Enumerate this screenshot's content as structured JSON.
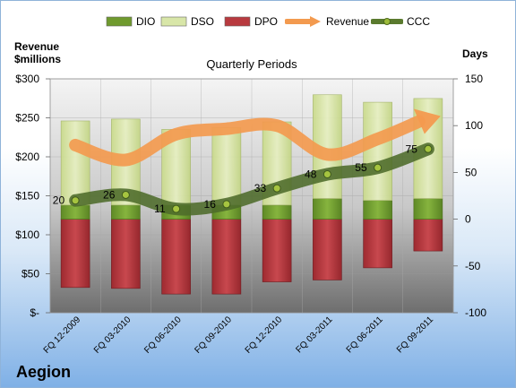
{
  "legend": [
    {
      "name": "DIO",
      "color": "#6f9a2e",
      "kind": "box"
    },
    {
      "name": "DSO",
      "color": "#d8e6a8",
      "kind": "box"
    },
    {
      "name": "DPO",
      "color": "#b83a3f",
      "kind": "box"
    },
    {
      "name": "Revenue",
      "color": "#f39a4f",
      "kind": "arrow"
    },
    {
      "name": "CCC",
      "color": "#5a7a2e",
      "kind": "line"
    }
  ],
  "left_axis_title": "Revenue\n$millions",
  "right_axis_title": "Days",
  "company": "Aegion",
  "chart_data": {
    "type": "bar",
    "title": "Quarterly Periods",
    "categories": [
      "FQ 12-2009",
      "FQ 03-2010",
      "FQ 06-2010",
      "FQ 09-2010",
      "FQ 12-2010",
      "FQ 03-2011",
      "FQ 06-2011",
      "FQ 09-2011"
    ],
    "y_left": {
      "label": "Revenue $millions",
      "range": [
        0,
        300
      ],
      "ticks": [
        "$-",
        "$50",
        "$100",
        "$150",
        "$200",
        "$250",
        "$300"
      ]
    },
    "y_right": {
      "label": "Days",
      "range": [
        -100,
        150
      ],
      "ticks": [
        "-100",
        "-50",
        "0",
        "50",
        "100",
        "150"
      ]
    },
    "series": [
      {
        "name": "DIO",
        "axis": "right",
        "values": [
          15,
          15,
          15,
          15,
          15,
          22,
          20,
          22
        ]
      },
      {
        "name": "DSO",
        "axis": "right",
        "values": [
          90,
          92,
          81,
          83,
          89,
          111,
          105,
          107
        ]
      },
      {
        "name": "DPO",
        "axis": "right",
        "values": [
          -73,
          -74,
          -80,
          -80,
          -67,
          -65,
          -52,
          -34
        ]
      },
      {
        "name": "Revenue",
        "axis": "left",
        "values": [
          215,
          196,
          229,
          236,
          240,
          203,
          223,
          250
        ]
      },
      {
        "name": "CCC",
        "axis": "right",
        "values": [
          20,
          26,
          11,
          16,
          33,
          48,
          55,
          75
        ]
      }
    ],
    "ccc_labels": [
      "20",
      "26",
      "11",
      "16",
      "33",
      "48",
      "55",
      "75"
    ],
    "grid": true
  }
}
